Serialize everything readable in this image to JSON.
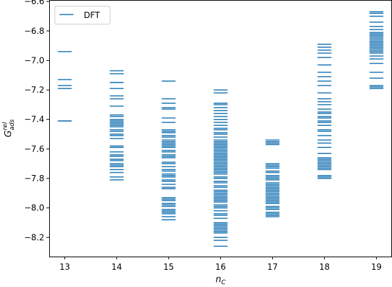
{
  "chart_data": {
    "type": "scatter",
    "marker": "horizontal-line",
    "xlabel": "n",
    "xlabel_sub": "C",
    "ylabel": "G",
    "ylabel_sub": "ads",
    "ylabel_sup": "rel",
    "xlim": [
      12.7,
      19.3
    ],
    "ylim": [
      -8.33,
      -6.59
    ],
    "xticks": [
      13,
      14,
      15,
      16,
      17,
      18,
      19
    ],
    "yticks": [
      -8.2,
      -8.0,
      -7.8,
      -7.6,
      -7.4,
      -7.2,
      -7.0,
      -6.8,
      -6.6
    ],
    "ytick_labels": [
      "−8.2",
      "−8.0",
      "−7.8",
      "−7.6",
      "−7.4",
      "−7.2",
      "−7.0",
      "−6.8",
      "−6.6"
    ],
    "grid": false,
    "legend_position": "top-left",
    "color": "#1f77b4",
    "series": [
      {
        "name": "DFT",
        "points": [
          {
            "x": 13,
            "y": [
              -6.94,
              -7.13,
              -7.17,
              -7.19,
              -7.41,
              -7.41
            ]
          },
          {
            "x": 14,
            "y": [
              -7.07,
              -7.09,
              -7.15,
              -7.15,
              -7.19,
              -7.24,
              -7.26,
              -7.31,
              -7.37,
              -7.38,
              -7.4,
              -7.41,
              -7.42,
              -7.43,
              -7.44,
              -7.45,
              -7.47,
              -7.48,
              -7.5,
              -7.51,
              -7.53,
              -7.58,
              -7.59,
              -7.62,
              -7.64,
              -7.65,
              -7.67,
              -7.68,
              -7.7,
              -7.71,
              -7.72,
              -7.74,
              -7.76,
              -7.79,
              -7.81
            ]
          },
          {
            "x": 15,
            "y": [
              -7.14,
              -7.14,
              -7.26,
              -7.29,
              -7.32,
              -7.33,
              -7.39,
              -7.42,
              -7.47,
              -7.48,
              -7.49,
              -7.51,
              -7.52,
              -7.54,
              -7.55,
              -7.56,
              -7.57,
              -7.58,
              -7.59,
              -7.61,
              -7.62,
              -7.64,
              -7.65,
              -7.66,
              -7.69,
              -7.7,
              -7.72,
              -7.74,
              -7.75,
              -7.77,
              -7.78,
              -7.79,
              -7.81,
              -7.82,
              -7.84,
              -7.86,
              -7.87,
              -7.93,
              -7.94,
              -7.95,
              -7.97,
              -7.98,
              -7.99,
              -8.01,
              -8.02,
              -8.03,
              -8.04,
              -8.06,
              -8.08
            ]
          },
          {
            "x": 16,
            "y": [
              -7.2,
              -7.22,
              -7.29,
              -7.3,
              -7.32,
              -7.34,
              -7.36,
              -7.38,
              -7.4,
              -7.42,
              -7.44,
              -7.46,
              -7.47,
              -7.49,
              -7.5,
              -7.52,
              -7.54,
              -7.55,
              -7.56,
              -7.57,
              -7.58,
              -7.59,
              -7.6,
              -7.61,
              -7.62,
              -7.63,
              -7.64,
              -7.65,
              -7.66,
              -7.67,
              -7.68,
              -7.69,
              -7.7,
              -7.71,
              -7.72,
              -7.73,
              -7.74,
              -7.75,
              -7.76,
              -7.77,
              -7.79,
              -7.8,
              -7.82,
              -7.83,
              -7.85,
              -7.86,
              -7.88,
              -7.89,
              -7.9,
              -7.91,
              -7.92,
              -7.93,
              -7.94,
              -7.95,
              -7.96,
              -7.98,
              -7.99,
              -8.0,
              -8.02,
              -8.04,
              -8.05,
              -8.07,
              -8.1,
              -8.11,
              -8.12,
              -8.13,
              -8.14,
              -8.15,
              -8.16,
              -8.17,
              -8.2,
              -8.22,
              -8.26
            ]
          },
          {
            "x": 17,
            "y": [
              -7.54,
              -7.55,
              -7.56,
              -7.57,
              -7.7,
              -7.71,
              -7.72,
              -7.73,
              -7.75,
              -7.76,
              -7.78,
              -7.79,
              -7.8,
              -7.81,
              -7.83,
              -7.84,
              -7.85,
              -7.86,
              -7.87,
              -7.88,
              -7.89,
              -7.9,
              -7.91,
              -7.92,
              -7.93,
              -7.94,
              -7.95,
              -7.96,
              -7.97,
              -7.99,
              -8.0,
              -8.01,
              -8.03,
              -8.04,
              -8.05,
              -8.06
            ]
          },
          {
            "x": 18,
            "y": [
              -6.89,
              -6.91,
              -6.93,
              -6.95,
              -6.98,
              -7.03,
              -7.08,
              -7.11,
              -7.14,
              -7.17,
              -7.22,
              -7.26,
              -7.28,
              -7.3,
              -7.33,
              -7.35,
              -7.36,
              -7.38,
              -7.39,
              -7.41,
              -7.42,
              -7.44,
              -7.47,
              -7.48,
              -7.51,
              -7.54,
              -7.56,
              -7.59,
              -7.63,
              -7.66,
              -7.67,
              -7.68,
              -7.69,
              -7.7,
              -7.71,
              -7.72,
              -7.73,
              -7.74,
              -7.78,
              -7.79,
              -7.8
            ]
          },
          {
            "x": 19,
            "y": [
              -6.67,
              -6.68,
              -6.7,
              -6.74,
              -6.77,
              -6.79,
              -6.81,
              -6.82,
              -6.83,
              -6.84,
              -6.85,
              -6.86,
              -6.87,
              -6.88,
              -6.89,
              -6.9,
              -6.91,
              -6.92,
              -6.93,
              -6.94,
              -6.95,
              -6.97,
              -6.99,
              -7.02,
              -7.08,
              -7.12,
              -7.17,
              -7.18,
              -7.19
            ]
          }
        ]
      }
    ]
  }
}
